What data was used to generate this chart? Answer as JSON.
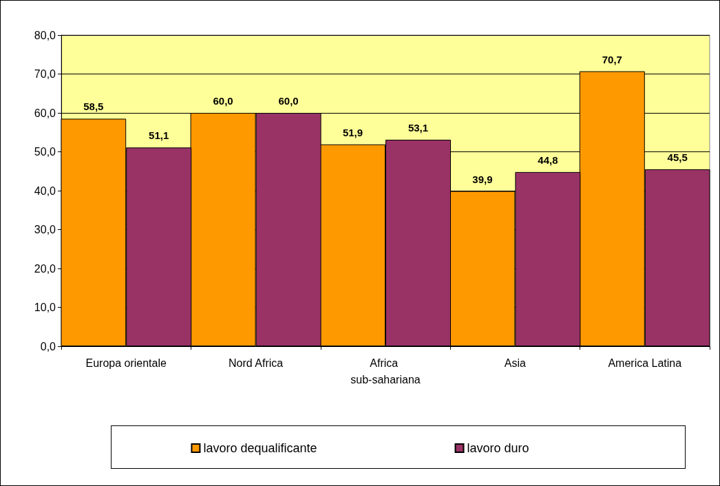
{
  "chart_data": {
    "type": "bar",
    "categories": [
      "Europa orientale",
      "Nord Africa",
      "Africa sub-sahariana",
      "Asia",
      "America Latina"
    ],
    "series": [
      {
        "name": "lavoro dequalificante",
        "color": "#ff9900",
        "values": [
          58.5,
          60.0,
          51.9,
          39.9,
          70.7
        ],
        "value_labels": [
          "58,5",
          "60,0",
          "51,9",
          "39,9",
          "70,7"
        ]
      },
      {
        "name": "lavoro duro",
        "color": "#993366",
        "values": [
          51.1,
          60.0,
          53.1,
          44.8,
          45.5
        ],
        "value_labels": [
          "51,1",
          "60,0",
          "53,1",
          "44,8",
          "45,5"
        ]
      }
    ],
    "ylim": [
      0,
      80
    ],
    "yticks": [
      {
        "value": 0,
        "label": "0,0"
      },
      {
        "value": 10,
        "label": "10,0"
      },
      {
        "value": 20,
        "label": "20,0"
      },
      {
        "value": 30,
        "label": "30,0"
      },
      {
        "value": 40,
        "label": "40,0"
      },
      {
        "value": 50,
        "label": "50,0"
      },
      {
        "value": 60,
        "label": "60,0"
      },
      {
        "value": 70,
        "label": "70,0"
      },
      {
        "value": 80,
        "label": "80,0"
      }
    ],
    "grid": "y",
    "legend": "bottom"
  }
}
